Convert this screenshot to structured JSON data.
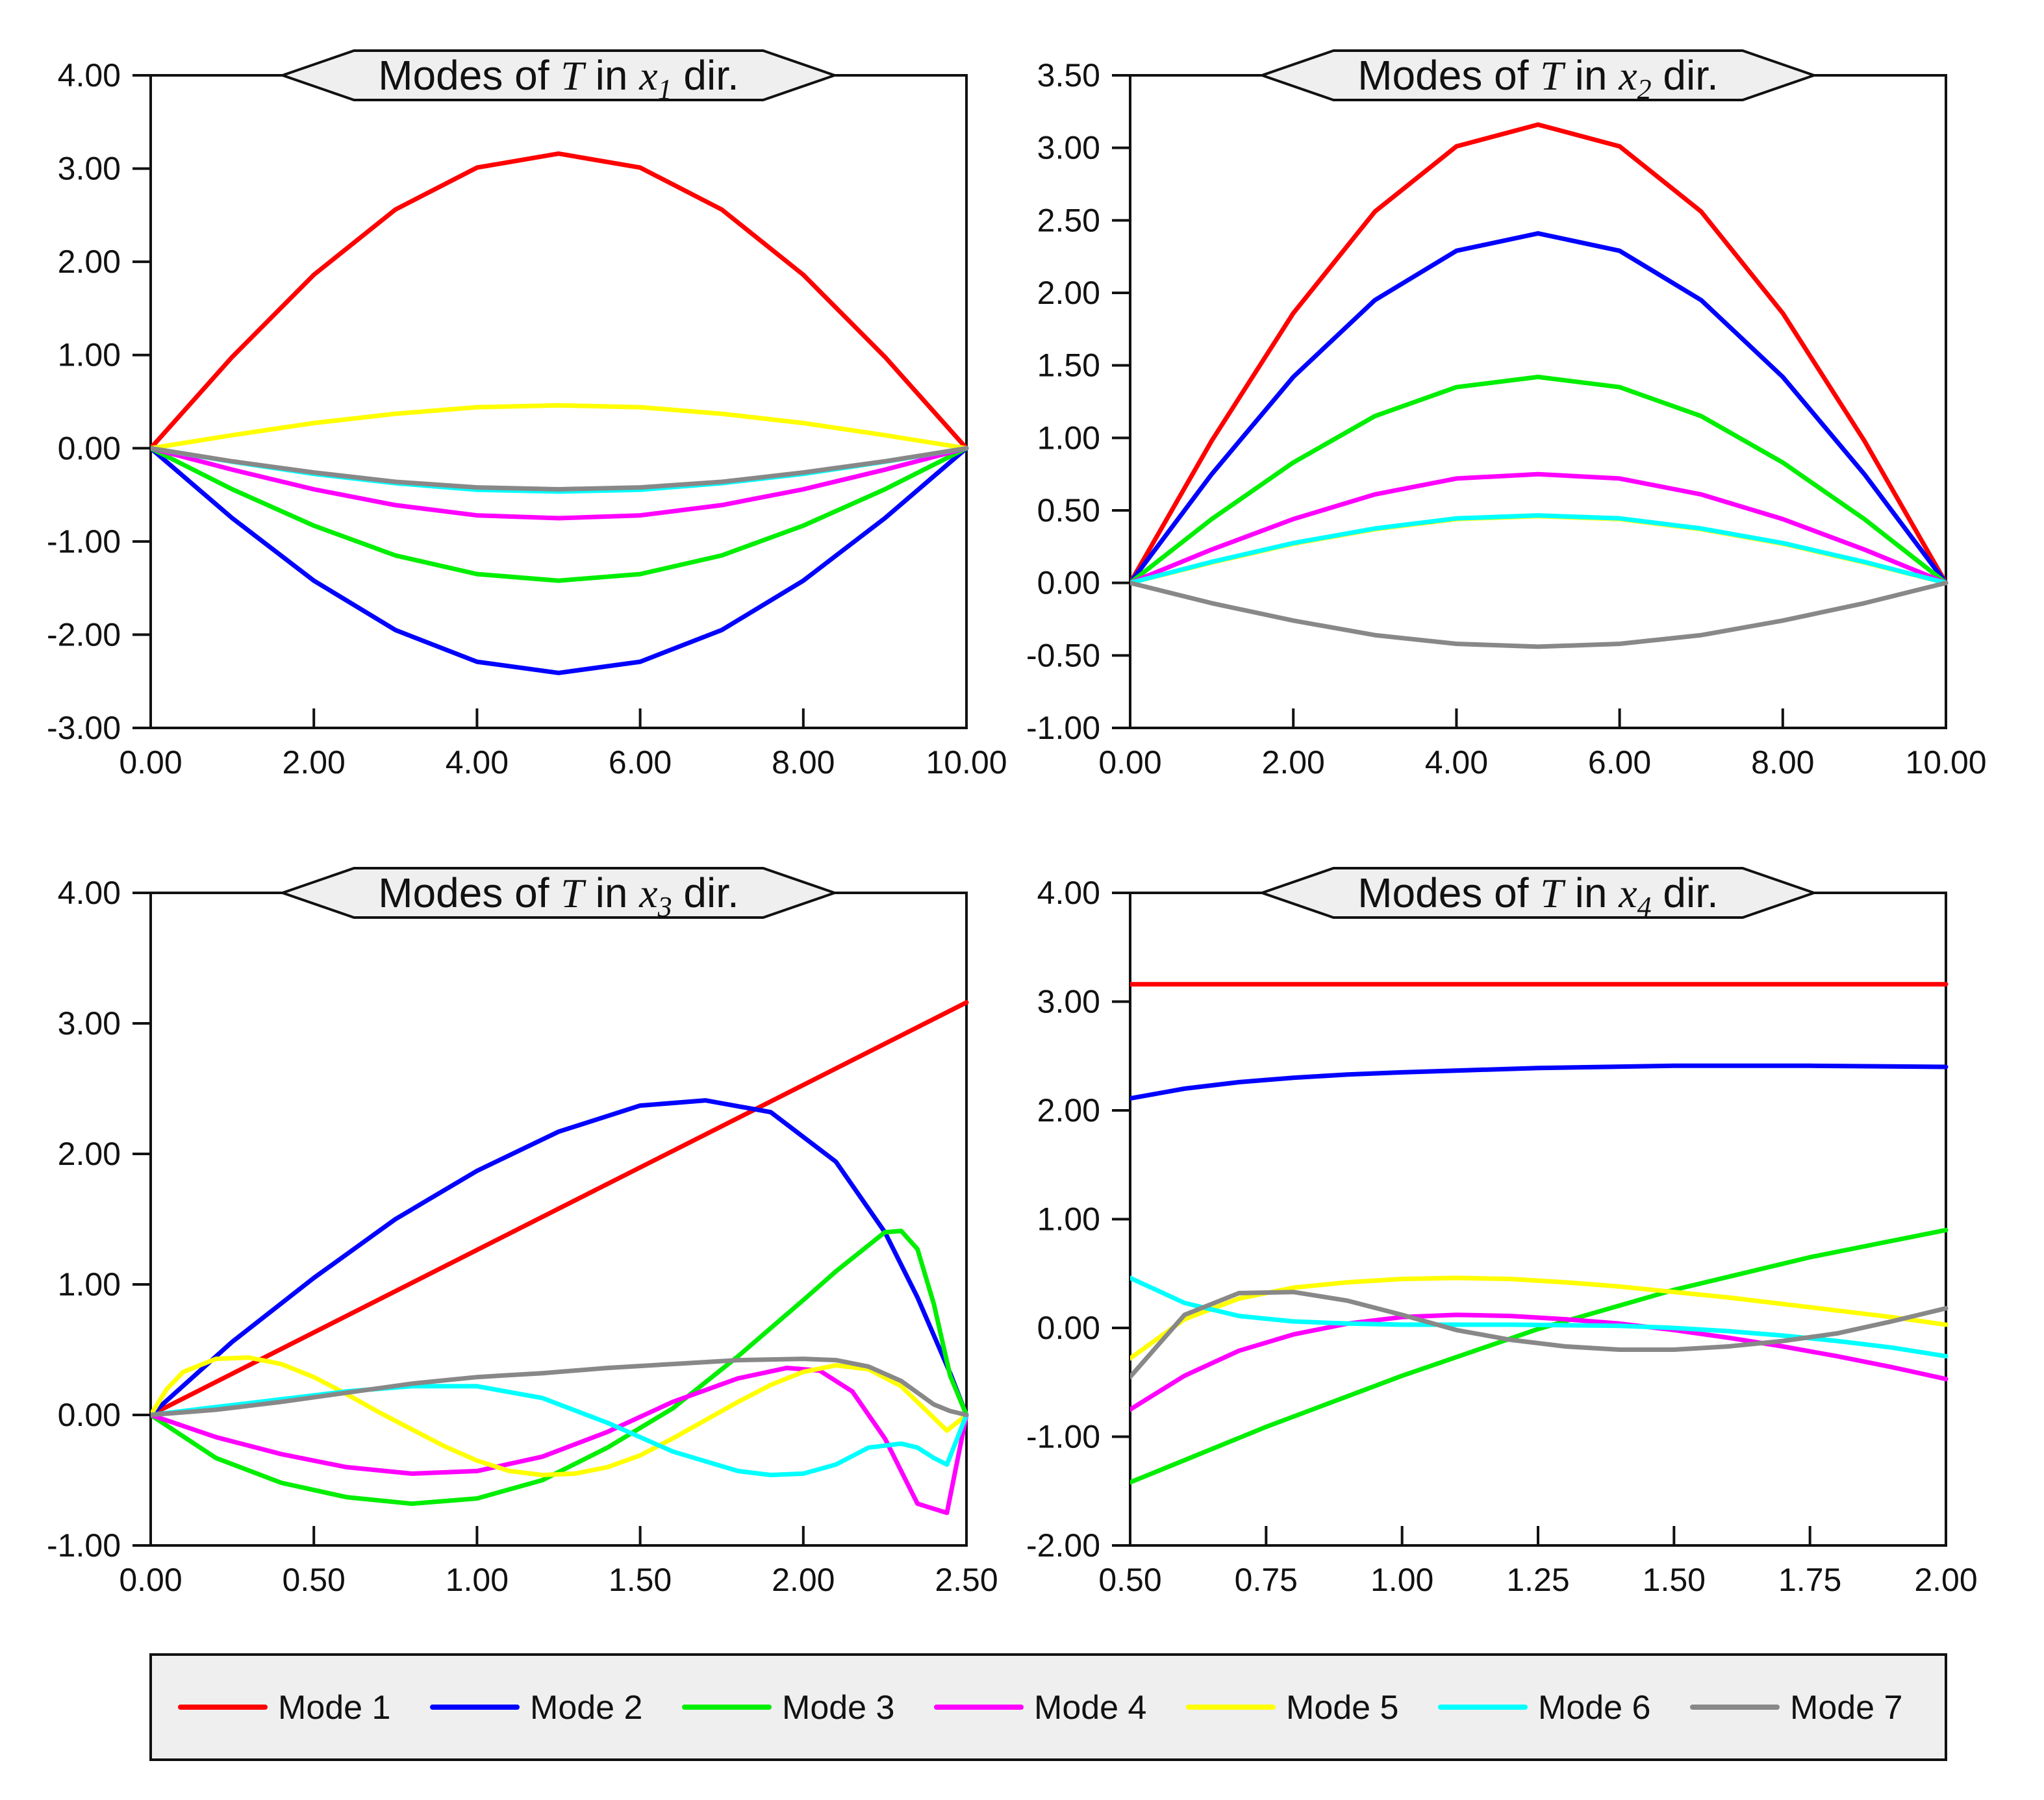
{
  "legend": {
    "placement": "bottom",
    "items": [
      {
        "label": "Mode 1",
        "color": "#ff0000"
      },
      {
        "label": "Mode 2",
        "color": "#0000ff"
      },
      {
        "label": "Mode 3",
        "color": "#00ee00"
      },
      {
        "label": "Mode 4",
        "color": "#ff00ff"
      },
      {
        "label": "Mode 5",
        "color": "#ffff00"
      },
      {
        "label": "Mode 6",
        "color": "#00ffff"
      },
      {
        "label": "Mode 7",
        "color": "#888888"
      }
    ]
  },
  "chart_data": [
    {
      "type": "line",
      "title": {
        "prefix": "Modes of ",
        "symbol": "T",
        "mid": " in ",
        "var": "x",
        "sub": "1",
        "suffix": " dir."
      },
      "xlabel": "",
      "ylabel": "",
      "xlim": [
        0,
        10
      ],
      "ylim": [
        -3,
        4
      ],
      "xticks": [
        "0.00",
        "2.00",
        "4.00",
        "6.00",
        "8.00",
        "10.00"
      ],
      "yticks": [
        "-3.00",
        "-2.00",
        "-1.00",
        "0.00",
        "1.00",
        "2.00",
        "3.00",
        "4.00"
      ],
      "grid": false,
      "x": [
        0,
        1,
        2,
        3,
        4,
        5,
        6,
        7,
        8,
        9,
        10
      ],
      "series": [
        {
          "name": "Mode 1",
          "values": [
            0,
            0.98,
            1.86,
            2.56,
            3.01,
            3.16,
            3.01,
            2.56,
            1.86,
            0.98,
            0
          ]
        },
        {
          "name": "Mode 2",
          "values": [
            0,
            -0.75,
            -1.42,
            -1.95,
            -2.29,
            -2.41,
            -2.29,
            -1.95,
            -1.42,
            -0.75,
            0
          ]
        },
        {
          "name": "Mode 3",
          "values": [
            0,
            -0.44,
            -0.83,
            -1.15,
            -1.35,
            -1.42,
            -1.35,
            -1.15,
            -0.83,
            -0.44,
            0
          ]
        },
        {
          "name": "Mode 4",
          "values": [
            0,
            -0.23,
            -0.44,
            -0.61,
            -0.72,
            -0.75,
            -0.72,
            -0.61,
            -0.44,
            -0.23,
            0
          ]
        },
        {
          "name": "Mode 5",
          "values": [
            0,
            0.14,
            0.27,
            0.37,
            0.44,
            0.46,
            0.44,
            0.37,
            0.27,
            0.14,
            0
          ]
        },
        {
          "name": "Mode 6",
          "values": [
            0,
            -0.145,
            -0.275,
            -0.375,
            -0.445,
            -0.465,
            -0.445,
            -0.375,
            -0.275,
            -0.145,
            0
          ]
        },
        {
          "name": "Mode 7",
          "values": [
            0,
            -0.14,
            -0.26,
            -0.36,
            -0.42,
            -0.44,
            -0.42,
            -0.36,
            -0.26,
            -0.14,
            0
          ]
        }
      ]
    },
    {
      "type": "line",
      "title": {
        "prefix": "Modes of ",
        "symbol": "T",
        "mid": " in ",
        "var": "x",
        "sub": "2",
        "suffix": " dir."
      },
      "xlabel": "",
      "ylabel": "",
      "xlim": [
        0,
        10
      ],
      "ylim": [
        -1,
        3.5
      ],
      "xticks": [
        "0.00",
        "2.00",
        "4.00",
        "6.00",
        "8.00",
        "10.00"
      ],
      "yticks": [
        "-1.00",
        "-0.50",
        "0.00",
        "0.50",
        "1.00",
        "1.50",
        "2.00",
        "2.50",
        "3.00",
        "3.50"
      ],
      "grid": false,
      "x": [
        0,
        1,
        2,
        3,
        4,
        5,
        6,
        7,
        8,
        9,
        10
      ],
      "series": [
        {
          "name": "Mode 1",
          "values": [
            0,
            0.98,
            1.86,
            2.56,
            3.01,
            3.16,
            3.01,
            2.56,
            1.86,
            0.98,
            0
          ]
        },
        {
          "name": "Mode 2",
          "values": [
            0,
            0.75,
            1.42,
            1.95,
            2.29,
            2.41,
            2.29,
            1.95,
            1.42,
            0.75,
            0
          ]
        },
        {
          "name": "Mode 3",
          "values": [
            0,
            0.44,
            0.83,
            1.15,
            1.35,
            1.42,
            1.35,
            1.15,
            0.83,
            0.44,
            0
          ]
        },
        {
          "name": "Mode 4",
          "values": [
            0,
            0.23,
            0.44,
            0.61,
            0.72,
            0.75,
            0.72,
            0.61,
            0.44,
            0.23,
            0
          ]
        },
        {
          "name": "Mode 5",
          "values": [
            0,
            0.14,
            0.27,
            0.37,
            0.44,
            0.46,
            0.44,
            0.37,
            0.27,
            0.14,
            0
          ]
        },
        {
          "name": "Mode 6",
          "values": [
            0,
            0.145,
            0.275,
            0.375,
            0.445,
            0.465,
            0.445,
            0.375,
            0.275,
            0.145,
            0
          ]
        },
        {
          "name": "Mode 7",
          "values": [
            0,
            -0.14,
            -0.26,
            -0.36,
            -0.42,
            -0.44,
            -0.42,
            -0.36,
            -0.26,
            -0.14,
            0
          ]
        }
      ]
    },
    {
      "type": "line",
      "title": {
        "prefix": "Modes of ",
        "symbol": "T",
        "mid": " in ",
        "var": "x",
        "sub": "3",
        "suffix": " dir."
      },
      "xlabel": "",
      "ylabel": "",
      "xlim": [
        0,
        2.5
      ],
      "ylim": [
        -1,
        4
      ],
      "xticks": [
        "0.00",
        "0.50",
        "1.00",
        "1.50",
        "2.00",
        "2.50"
      ],
      "yticks": [
        "-1.00",
        "0.00",
        "1.00",
        "2.00",
        "3.00",
        "4.00"
      ],
      "grid": false,
      "series": [
        {
          "name": "Mode 1",
          "x": [
            0,
            2.5
          ],
          "values": [
            0,
            3.16
          ]
        },
        {
          "name": "Mode 2",
          "x": [
            0,
            0.25,
            0.5,
            0.75,
            1.0,
            1.25,
            1.5,
            1.7,
            1.9,
            2.1,
            2.25,
            2.35,
            2.45,
            2.5
          ],
          "values": [
            0,
            0.56,
            1.05,
            1.5,
            1.87,
            2.17,
            2.37,
            2.41,
            2.32,
            1.94,
            1.4,
            0.9,
            0.32,
            0
          ]
        },
        {
          "name": "Mode 3",
          "x": [
            0,
            0.2,
            0.4,
            0.6,
            0.8,
            1.0,
            1.2,
            1.4,
            1.6,
            1.8,
            2.0,
            2.1,
            2.2,
            2.25,
            2.3,
            2.35,
            2.4,
            2.45,
            2.5
          ],
          "values": [
            0,
            -0.33,
            -0.52,
            -0.63,
            -0.68,
            -0.64,
            -0.5,
            -0.25,
            0.05,
            0.45,
            0.88,
            1.1,
            1.3,
            1.4,
            1.41,
            1.27,
            0.85,
            0.3,
            0
          ]
        },
        {
          "name": "Mode 4",
          "x": [
            0,
            0.2,
            0.4,
            0.6,
            0.8,
            1.0,
            1.2,
            1.4,
            1.6,
            1.8,
            1.95,
            2.05,
            2.15,
            2.25,
            2.35,
            2.44,
            2.5
          ],
          "values": [
            0,
            -0.17,
            -0.3,
            -0.4,
            -0.45,
            -0.43,
            -0.32,
            -0.13,
            0.1,
            0.28,
            0.36,
            0.34,
            0.18,
            -0.18,
            -0.68,
            -0.75,
            0
          ]
        },
        {
          "name": "Mode 5",
          "x": [
            0,
            0.05,
            0.1,
            0.2,
            0.3,
            0.4,
            0.5,
            0.6,
            0.7,
            0.8,
            0.9,
            1.0,
            1.1,
            1.2,
            1.3,
            1.4,
            1.5,
            1.6,
            1.7,
            1.8,
            1.9,
            2.0,
            2.1,
            2.2,
            2.3,
            2.37,
            2.44,
            2.5
          ],
          "values": [
            0,
            0.2,
            0.33,
            0.43,
            0.44,
            0.39,
            0.29,
            0.16,
            0.02,
            -0.11,
            -0.24,
            -0.35,
            -0.43,
            -0.46,
            -0.45,
            -0.4,
            -0.31,
            -0.18,
            -0.04,
            0.1,
            0.23,
            0.33,
            0.38,
            0.35,
            0.22,
            0.05,
            -0.12,
            0
          ]
        },
        {
          "name": "Mode 6",
          "x": [
            0,
            0.2,
            0.4,
            0.6,
            0.8,
            1.0,
            1.2,
            1.4,
            1.6,
            1.8,
            1.9,
            2.0,
            2.1,
            2.2,
            2.3,
            2.35,
            2.4,
            2.44,
            2.5
          ],
          "values": [
            0,
            0.06,
            0.12,
            0.18,
            0.22,
            0.22,
            0.13,
            -0.06,
            -0.28,
            -0.43,
            -0.46,
            -0.45,
            -0.38,
            -0.25,
            -0.22,
            -0.25,
            -0.33,
            -0.38,
            0
          ]
        },
        {
          "name": "Mode 7",
          "x": [
            0,
            0.1,
            0.2,
            0.4,
            0.6,
            0.8,
            1.0,
            1.2,
            1.4,
            1.6,
            1.8,
            2.0,
            2.1,
            2.2,
            2.3,
            2.35,
            2.4,
            2.45,
            2.5
          ],
          "values": [
            0,
            0.02,
            0.04,
            0.1,
            0.17,
            0.24,
            0.29,
            0.32,
            0.36,
            0.39,
            0.42,
            0.43,
            0.42,
            0.37,
            0.26,
            0.17,
            0.08,
            0.03,
            0
          ]
        }
      ]
    },
    {
      "type": "line",
      "title": {
        "prefix": "Modes of ",
        "symbol": "T",
        "mid": " in ",
        "var": "x",
        "sub": "4",
        "suffix": " dir."
      },
      "xlabel": "",
      "ylabel": "",
      "xlim": [
        0.5,
        2.0
      ],
      "ylim": [
        -2,
        4
      ],
      "xticks": [
        "0.50",
        "0.75",
        "1.00",
        "1.25",
        "1.50",
        "1.75",
        "2.00"
      ],
      "yticks": [
        "-2.00",
        "-1.00",
        "0.00",
        "1.00",
        "2.00",
        "3.00",
        "4.00"
      ],
      "grid": false,
      "series": [
        {
          "name": "Mode 1",
          "x": [
            0.5,
            2.0
          ],
          "values": [
            3.16,
            3.16
          ]
        },
        {
          "name": "Mode 2",
          "x": [
            0.5,
            0.6,
            0.7,
            0.8,
            0.9,
            1.0,
            1.25,
            1.5,
            1.75,
            2.0
          ],
          "values": [
            2.11,
            2.2,
            2.26,
            2.3,
            2.33,
            2.35,
            2.39,
            2.41,
            2.41,
            2.4
          ]
        },
        {
          "name": "Mode 3",
          "x": [
            0.5,
            0.75,
            1.0,
            1.25,
            1.5,
            1.75,
            2.0
          ],
          "values": [
            -1.42,
            -0.91,
            -0.44,
            -0.01,
            0.35,
            0.65,
            0.9
          ]
        },
        {
          "name": "Mode 4",
          "x": [
            0.5,
            0.6,
            0.7,
            0.8,
            0.9,
            1.0,
            1.1,
            1.2,
            1.3,
            1.4,
            1.5,
            1.6,
            1.7,
            1.8,
            1.9,
            2.0
          ],
          "values": [
            -0.75,
            -0.44,
            -0.21,
            -0.06,
            0.04,
            0.1,
            0.12,
            0.11,
            0.08,
            0.04,
            -0.02,
            -0.09,
            -0.17,
            -0.26,
            -0.36,
            -0.47
          ]
        },
        {
          "name": "Mode 5",
          "x": [
            0.5,
            0.6,
            0.7,
            0.8,
            0.9,
            1.0,
            1.1,
            1.2,
            1.3,
            1.4,
            1.5,
            1.6,
            1.7,
            1.8,
            1.9,
            2.0
          ],
          "values": [
            -0.28,
            0.08,
            0.27,
            0.37,
            0.42,
            0.45,
            0.46,
            0.45,
            0.42,
            0.38,
            0.33,
            0.28,
            0.22,
            0.16,
            0.1,
            0.03
          ]
        },
        {
          "name": "Mode 6",
          "x": [
            0.5,
            0.6,
            0.7,
            0.8,
            0.9,
            1.0,
            1.2,
            1.4,
            1.5,
            1.6,
            1.7,
            1.8,
            1.9,
            2.0
          ],
          "values": [
            0.46,
            0.23,
            0.11,
            0.06,
            0.04,
            0.03,
            0.03,
            0.02,
            0.0,
            -0.03,
            -0.07,
            -0.12,
            -0.18,
            -0.26
          ]
        },
        {
          "name": "Mode 7",
          "x": [
            0.5,
            0.6,
            0.7,
            0.8,
            0.9,
            1.0,
            1.1,
            1.2,
            1.3,
            1.4,
            1.5,
            1.6,
            1.7,
            1.8,
            1.9,
            2.0
          ],
          "values": [
            -0.45,
            0.12,
            0.32,
            0.33,
            0.25,
            0.12,
            -0.02,
            -0.11,
            -0.17,
            -0.2,
            -0.2,
            -0.17,
            -0.12,
            -0.05,
            0.06,
            0.18
          ]
        }
      ]
    }
  ]
}
